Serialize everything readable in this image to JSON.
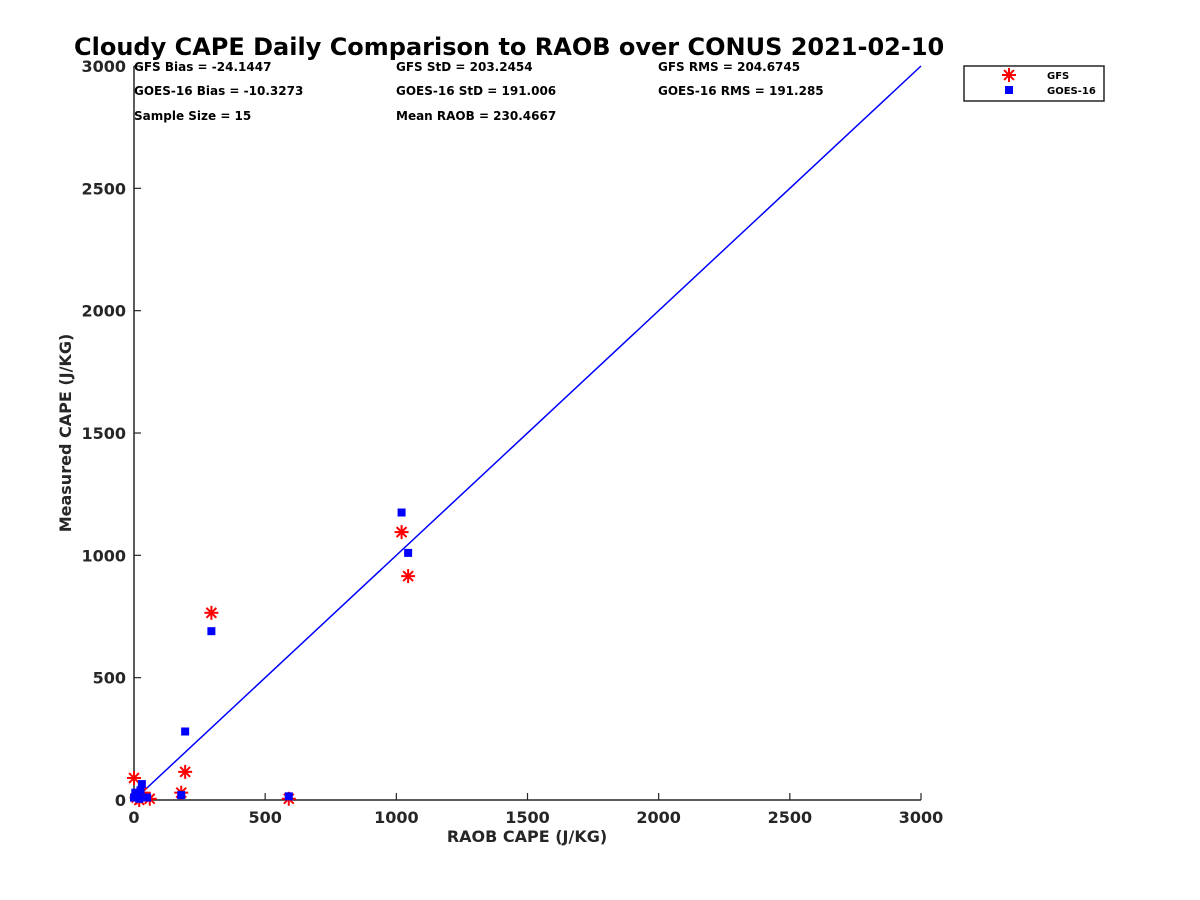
{
  "chart_data": {
    "type": "scatter",
    "title": "Cloudy CAPE Daily Comparison to RAOB over CONUS 2021-02-10",
    "xlabel": "RAOB CAPE (J/KG)",
    "ylabel": "Measured CAPE (J/KG)",
    "xlim": [
      0,
      3000
    ],
    "ylim": [
      0,
      3000
    ],
    "xticks": [
      "0",
      "500",
      "1000",
      "1500",
      "2000",
      "2500",
      "3000"
    ],
    "yticks": [
      "0",
      "500",
      "1000",
      "1500",
      "2000",
      "2500",
      "3000"
    ],
    "grid": false,
    "legend_position": "top-right",
    "stats": [
      "GFS Bias = -24.1447",
      "GOES-16 Bias = -10.3273",
      "Sample Size = 15",
      "GFS StD = 203.2454",
      "GOES-16 StD = 191.006",
      "Mean RAOB = 230.4667",
      "GFS RMS = 204.6745",
      "GOES-16 RMS = 191.285"
    ],
    "reference_line": {
      "x": [
        0,
        3000
      ],
      "y": [
        0,
        3000
      ],
      "color": "#0000ff"
    },
    "series": [
      {
        "name": "GFS",
        "marker": "asterisk",
        "color": "#ff0000",
        "x": [
          0,
          10,
          20,
          30,
          60,
          180,
          195,
          295,
          590,
          1020,
          1045
        ],
        "y": [
          90,
          10,
          0,
          30,
          5,
          30,
          115,
          765,
          5,
          1095,
          915
        ]
      },
      {
        "name": "GOES-16",
        "marker": "square",
        "color": "#0000ff",
        "x": [
          0,
          5,
          15,
          20,
          25,
          30,
          50,
          180,
          195,
          295,
          590,
          1020,
          1045
        ],
        "y": [
          10,
          30,
          20,
          5,
          40,
          65,
          10,
          20,
          280,
          690,
          15,
          1175,
          1010
        ]
      }
    ]
  }
}
